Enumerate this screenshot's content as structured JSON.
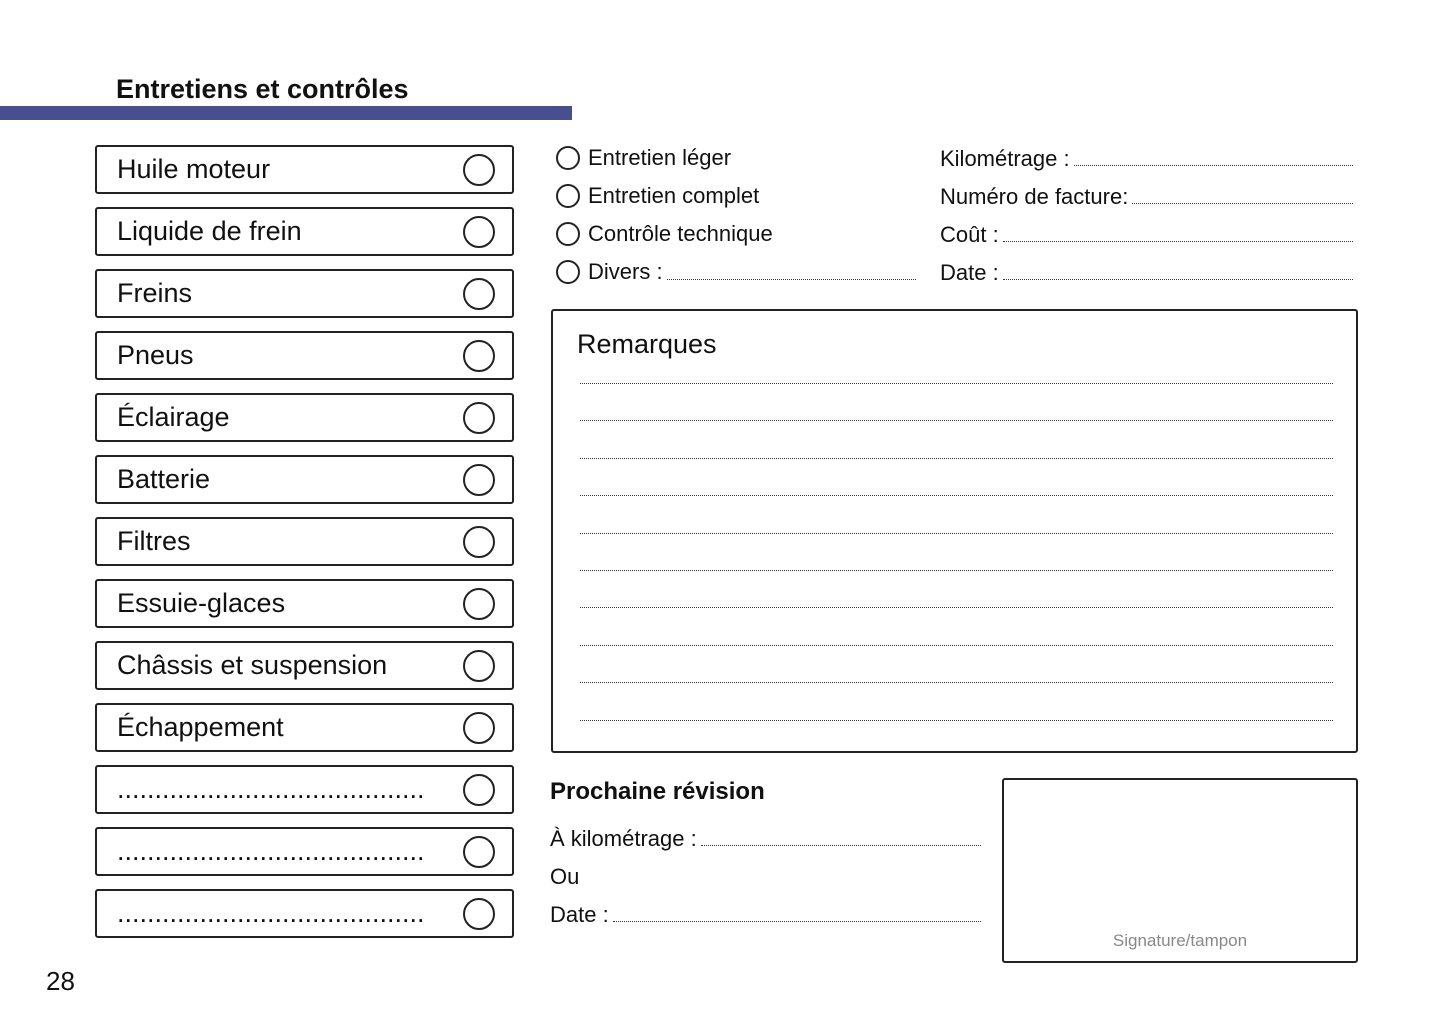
{
  "header": {
    "title": "Entretiens et contrôles",
    "bar_color": "#474f8f"
  },
  "checklist": [
    {
      "label": "Huile moteur"
    },
    {
      "label": "Liquide de frein"
    },
    {
      "label": "Freins"
    },
    {
      "label": "Pneus"
    },
    {
      "label": "Éclairage"
    },
    {
      "label": "Batterie"
    },
    {
      "label": "Filtres"
    },
    {
      "label": "Essuie-glaces"
    },
    {
      "label": "Châssis et suspension"
    },
    {
      "label": "Échappement"
    },
    {
      "label": "........................................."
    },
    {
      "label": "........................................."
    },
    {
      "label": "........................................."
    }
  ],
  "service_types": [
    "Entretien léger",
    "Entretien complet",
    "Contrôle technique",
    "Divers :"
  ],
  "fields": [
    "Kilométrage :",
    "Numéro de facture:",
    "Coût :",
    "Date :"
  ],
  "remarks": {
    "title": "Remarques"
  },
  "next_service": {
    "title": "Prochaine révision",
    "mileage": "À kilométrage :",
    "or": "Ou",
    "date": "Date :"
  },
  "signature": {
    "label": "Signature/tampon"
  },
  "page_number": "28"
}
